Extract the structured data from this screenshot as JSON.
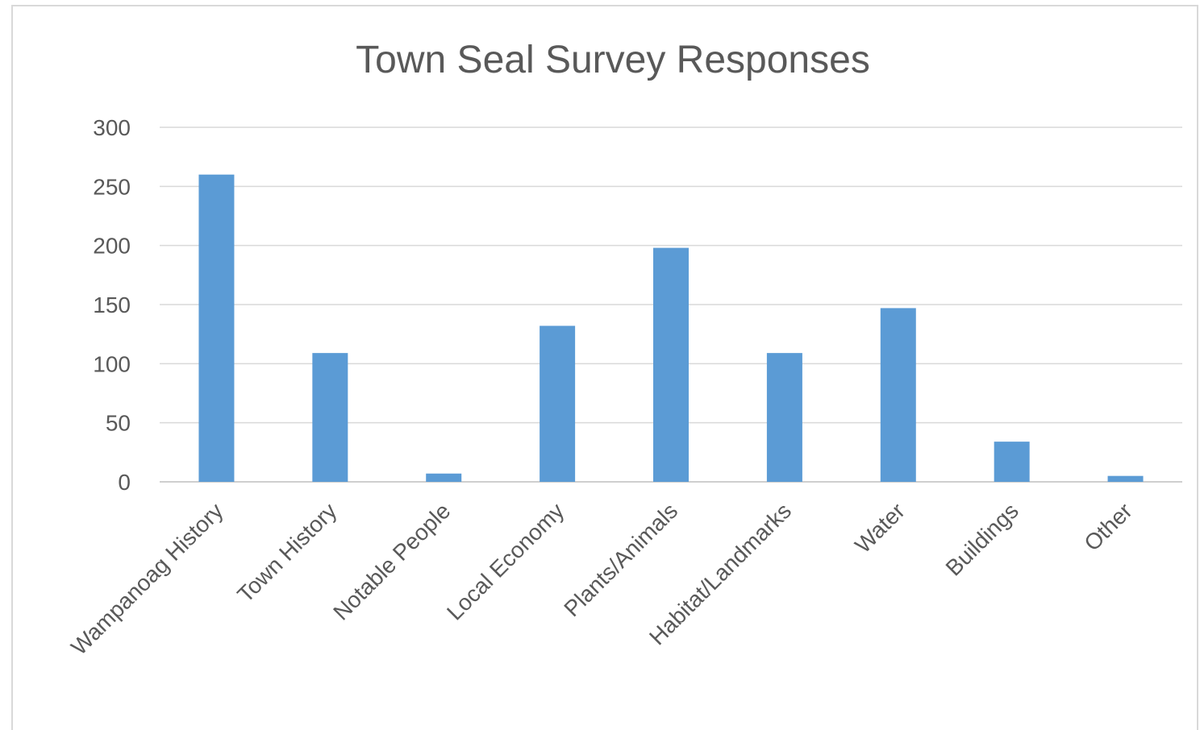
{
  "chart_data": {
    "type": "bar",
    "title": "Town Seal Survey Responses",
    "xlabel": "",
    "ylabel": "",
    "categories": [
      "Wampanoag History",
      "Town History",
      "Notable People",
      "Local Economy",
      "Plants/Animals",
      "Habitat/Landmarks",
      "Water",
      "Buildings",
      "Other"
    ],
    "series": [
      {
        "values": [
          260,
          109,
          7,
          132,
          198,
          109,
          147,
          34,
          5
        ]
      }
    ],
    "ylim": [
      0,
      300
    ],
    "yticks": [
      0,
      50,
      100,
      150,
      200,
      250,
      300
    ],
    "grid": true,
    "legend": "none",
    "colors": {
      "bar": "#5b9bd5",
      "grid": "#d9d9d9",
      "text": "#595959"
    }
  }
}
